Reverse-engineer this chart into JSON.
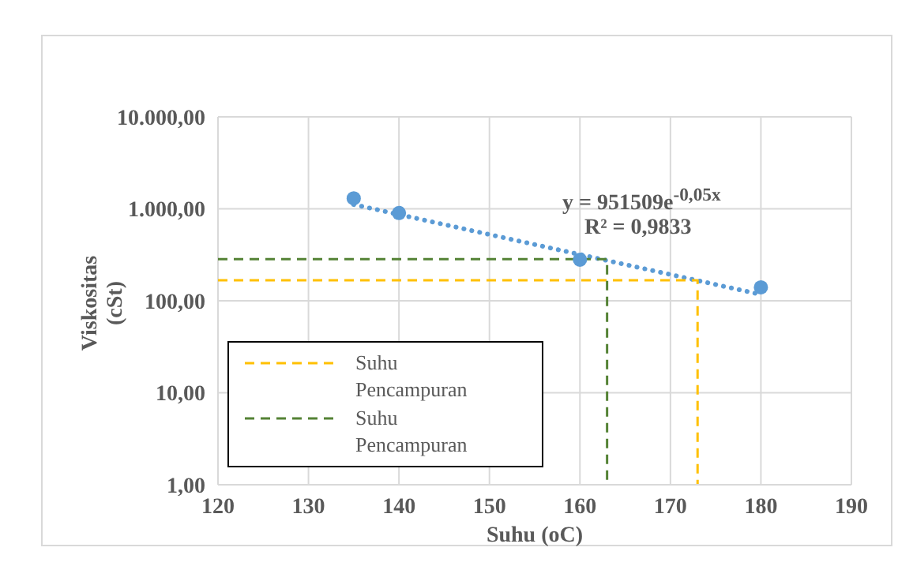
{
  "chart_data": {
    "type": "scatter",
    "xlabel": "Suhu (oC)",
    "ylabel": "Viskositas (cSt)",
    "x": [
      135,
      140,
      160,
      180
    ],
    "series": [
      {
        "color": "#5b9bd5",
        "values": [
          1300,
          900,
          280,
          140
        ],
        "marker": "circle"
      },
      {
        "type": "line",
        "color": "#5b9bd5",
        "x": [
          135,
          180
        ],
        "values": [
          1114,
          117
        ],
        "line_style": "dotted",
        "marker": "none"
      },
      {
        "type": "line",
        "name": "Suhu Pencampuran",
        "color": "#ffc000",
        "x": [
          120,
          173,
          173
        ],
        "values": [
          167,
          167,
          1
        ],
        "line_style": "dashed",
        "marker": "none"
      },
      {
        "type": "line",
        "name": "Suhu Pencampuran",
        "color": "#548235",
        "x": [
          120,
          163,
          163
        ],
        "values": [
          283,
          283,
          1
        ],
        "line_style": "dashed",
        "marker": "none"
      }
    ],
    "annotations": [
      "y = 951509e$^{-0,05x}$",
      "R² = 0,9833"
    ],
    "log": "y",
    "xlim": [
      120,
      190
    ],
    "xticks": [
      120,
      130,
      140,
      150,
      160,
      170,
      180,
      190
    ],
    "ylim": [
      1,
      10000
    ],
    "yticks": [
      {
        "value": 1,
        "label": "1,00"
      },
      {
        "value": 10,
        "label": "10,00"
      },
      {
        "value": 100,
        "label": "100,00"
      },
      {
        "value": 1000,
        "label": "1.000,00"
      },
      {
        "value": 10000,
        "label": "10.000,00"
      }
    ],
    "grid": true,
    "legend": "bottom left"
  }
}
